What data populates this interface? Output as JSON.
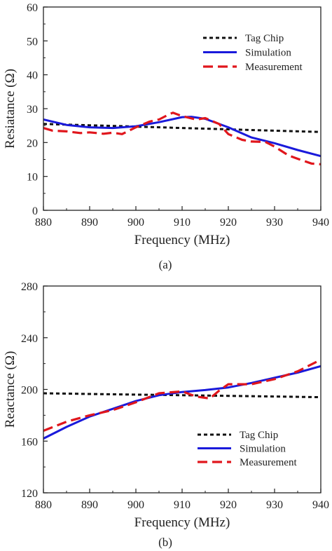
{
  "chart_data": [
    {
      "type": "line",
      "caption": "(a)",
      "xlabel": "Frequency (MHz)",
      "ylabel": "Resiatance (Ω)",
      "xlim": [
        880,
        940
      ],
      "ylim": [
        0,
        60
      ],
      "xticks": [
        880,
        890,
        900,
        910,
        920,
        930,
        940
      ],
      "yticks": [
        0,
        10,
        20,
        30,
        40,
        50,
        60
      ],
      "legend_position": "top-right",
      "series": [
        {
          "name": "Tag Chip",
          "color": "#111111",
          "dash": "dotted",
          "x": [
            880,
            890,
            900,
            910,
            920,
            930,
            940
          ],
          "y": [
            25.5,
            25.1,
            24.7,
            24.3,
            23.9,
            23.5,
            23.1
          ]
        },
        {
          "name": "Simulation",
          "color": "#1a1adb",
          "dash": "solid",
          "x": [
            880,
            885,
            890,
            895,
            900,
            905,
            910,
            912,
            915,
            920,
            925,
            930,
            935,
            940
          ],
          "y": [
            26.8,
            25.2,
            24.5,
            24.3,
            24.8,
            26.0,
            27.5,
            27.6,
            27.0,
            24.5,
            21.5,
            19.8,
            17.8,
            16.0
          ]
        },
        {
          "name": "Measurement",
          "color": "#e0161c",
          "dash": "dashed",
          "x": [
            880,
            882,
            885,
            888,
            890,
            893,
            895,
            897,
            900,
            903,
            905,
            907,
            908,
            910,
            913,
            915,
            918,
            920,
            923,
            925,
            928,
            930,
            933,
            935,
            938,
            940
          ],
          "y": [
            24.3,
            23.5,
            23.3,
            22.8,
            23.0,
            22.6,
            22.9,
            22.5,
            24.5,
            26.2,
            26.8,
            28.2,
            28.8,
            27.8,
            26.8,
            27.2,
            25.5,
            22.5,
            20.8,
            20.3,
            20.2,
            18.8,
            16.2,
            15.2,
            13.8,
            13.6
          ]
        }
      ]
    },
    {
      "type": "line",
      "caption": "(b)",
      "xlabel": "Frequency (MHz)",
      "ylabel": "Reactance (Ω)",
      "xlim": [
        880,
        940
      ],
      "ylim": [
        120,
        280
      ],
      "xticks": [
        880,
        890,
        900,
        910,
        920,
        930,
        940
      ],
      "yticks": [
        120,
        160,
        200,
        240,
        280
      ],
      "legend_position": "bottom-right",
      "series": [
        {
          "name": "Tag Chip",
          "color": "#111111",
          "dash": "dotted",
          "x": [
            880,
            890,
            900,
            910,
            920,
            930,
            940
          ],
          "y": [
            197,
            196.5,
            196,
            195.5,
            195,
            194.5,
            194
          ]
        },
        {
          "name": "Simulation",
          "color": "#1a1adb",
          "dash": "solid",
          "x": [
            880,
            885,
            890,
            895,
            900,
            905,
            910,
            915,
            920,
            925,
            930,
            935,
            940
          ],
          "y": [
            162,
            171,
            179,
            185,
            191,
            195.5,
            198,
            199.5,
            201.5,
            205,
            209,
            213,
            218
          ]
        },
        {
          "name": "Measurement",
          "color": "#e0161c",
          "dash": "dashed",
          "x": [
            880,
            885,
            890,
            895,
            900,
            905,
            910,
            913,
            916,
            918,
            920,
            925,
            930,
            935,
            940
          ],
          "y": [
            168,
            175,
            180,
            184,
            190,
            197,
            198.5,
            194.5,
            193,
            199,
            204,
            204,
            208,
            214,
            223
          ]
        }
      ]
    }
  ]
}
